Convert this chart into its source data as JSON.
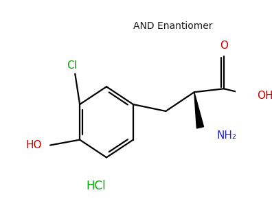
{
  "and_enantiomer_text": "AND Enantiomer",
  "and_enantiomer_color": "#1a1a1a",
  "and_enantiomer_fontsize": 10,
  "hcl_text": "HCl",
  "hcl_color": "#00aa00",
  "hcl_fontsize": 12,
  "cl_text": "Cl",
  "cl_color": "#00aa00",
  "cl_fontsize": 11,
  "ho_text": "HO",
  "ho_color": "#cc0000",
  "ho_fontsize": 11,
  "o_text": "O",
  "o_color": "#cc0000",
  "o_fontsize": 11,
  "oh_text": "OH",
  "oh_color": "#cc0000",
  "oh_fontsize": 11,
  "nh2_text": "NH₂",
  "nh2_color": "#2222cc",
  "nh2_fontsize": 11,
  "background_color": "#ffffff",
  "line_color": "#000000",
  "line_width": 1.6
}
